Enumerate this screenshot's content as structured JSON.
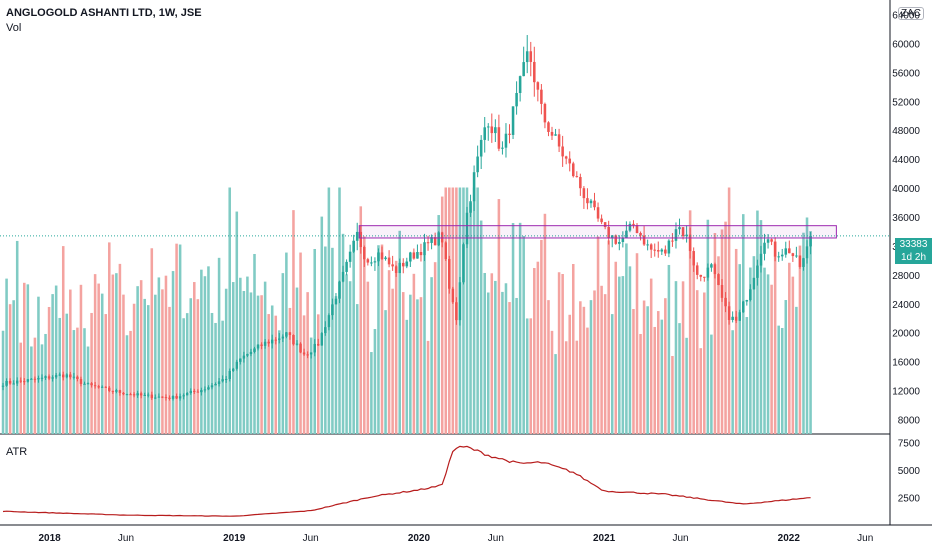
{
  "header": {
    "title": "ANGLOGOLD ASHANTI LTD, 1W, JSE",
    "volume_label": "Vol",
    "indicator_label": "ATR"
  },
  "currency": "ZAC",
  "current": {
    "price_label": "33383",
    "countdown": "1d 2h",
    "price": 33383
  },
  "colors": {
    "up": "#26a69a",
    "down": "#ef5350",
    "vol_up": "#80cbc4",
    "vol_down": "#f4a3a0",
    "atr": "#b71c1c",
    "box": "#9c27b0",
    "grid": "#131722"
  },
  "chart_data": [
    {
      "type": "candlestick",
      "title": "ANGLOGOLD ASHANTI LTD, 1W, JSE",
      "ylim": [
        6000,
        66000
      ],
      "y_ticks": [
        8000,
        12000,
        16000,
        20000,
        24000,
        28000,
        32000,
        36000,
        40000,
        44000,
        48000,
        52000,
        56000,
        60000,
        64000
      ],
      "x_ticks": [
        "2018",
        "Jun",
        "2019",
        "Jun",
        "2020",
        "Jun",
        "2021",
        "Jun",
        "2022",
        "Jun"
      ],
      "x_tick_dates": [
        "2018-01-01",
        "2018-06-01",
        "2019-01-01",
        "2019-06-01",
        "2020-01-01",
        "2020-06-01",
        "2021-01-01",
        "2021-06-01",
        "2022-01-01",
        "2022-06-01"
      ],
      "x_range": [
        "2017-09-25",
        "2022-07-20"
      ],
      "close_path": [
        [
          "2017-10-01",
          13000
        ],
        [
          "2017-12-01",
          13500
        ],
        [
          "2018-02-01",
          14200
        ],
        [
          "2018-03-15",
          12800
        ],
        [
          "2018-05-01",
          12000
        ],
        [
          "2018-07-01",
          11300
        ],
        [
          "2018-09-01",
          11000
        ],
        [
          "2018-11-01",
          12200
        ],
        [
          "2018-12-15",
          13700
        ],
        [
          "2019-01-15",
          16500
        ],
        [
          "2019-03-01",
          18500
        ],
        [
          "2019-04-15",
          19800
        ],
        [
          "2019-05-20",
          17000
        ],
        [
          "2019-06-15",
          18300
        ],
        [
          "2019-07-15",
          24000
        ],
        [
          "2019-08-15",
          30000
        ],
        [
          "2019-09-01",
          33500
        ],
        [
          "2019-09-20",
          30000
        ],
        [
          "2019-10-15",
          31000
        ],
        [
          "2019-11-15",
          28500
        ],
        [
          "2019-12-15",
          30500
        ],
        [
          "2020-01-15",
          32000
        ],
        [
          "2020-02-15",
          33500
        ],
        [
          "2020-03-01",
          26000
        ],
        [
          "2020-03-15",
          22000
        ],
        [
          "2020-04-01",
          35000
        ],
        [
          "2020-04-20",
          42000
        ],
        [
          "2020-05-15",
          50000
        ],
        [
          "2020-06-15",
          45000
        ],
        [
          "2020-07-15",
          53000
        ],
        [
          "2020-08-05",
          59000
        ],
        [
          "2020-09-01",
          50000
        ],
        [
          "2020-10-01",
          46000
        ],
        [
          "2020-11-01",
          42000
        ],
        [
          "2020-12-01",
          38000
        ],
        [
          "2021-01-01",
          34000
        ],
        [
          "2021-02-01",
          32500
        ],
        [
          "2021-03-01",
          35000
        ],
        [
          "2021-04-01",
          31500
        ],
        [
          "2021-05-01",
          31000
        ],
        [
          "2021-05-25",
          35000
        ],
        [
          "2021-06-15",
          33000
        ],
        [
          "2021-07-05",
          27500
        ],
        [
          "2021-08-01",
          29000
        ],
        [
          "2021-09-01",
          22500
        ],
        [
          "2021-09-20",
          21500
        ],
        [
          "2021-10-15",
          26000
        ],
        [
          "2021-11-15",
          33500
        ],
        [
          "2021-12-05",
          31000
        ],
        [
          "2022-01-01",
          31500
        ],
        [
          "2022-01-25",
          29000
        ],
        [
          "2022-02-15",
          33383
        ]
      ],
      "resistance_zone": {
        "x_start": "2019-09-05",
        "x_end": "2022-04-05",
        "y_low": 33100,
        "y_high": 34800
      }
    },
    {
      "type": "bar",
      "name": "Vol",
      "note_scale": "volume bars overlaid on the price pane"
    },
    {
      "type": "line",
      "name": "ATR",
      "ylim": [
        0,
        8200
      ],
      "y_ticks": [
        2500,
        5000,
        7500
      ],
      "path": [
        [
          "2017-10-01",
          1250
        ],
        [
          "2018-06-01",
          900
        ],
        [
          "2019-01-01",
          800
        ],
        [
          "2019-06-01",
          1300
        ],
        [
          "2019-10-01",
          2600
        ],
        [
          "2020-01-01",
          3200
        ],
        [
          "2020-02-15",
          3600
        ],
        [
          "2020-03-10",
          7000
        ],
        [
          "2020-04-05",
          7100
        ],
        [
          "2020-05-20",
          6300
        ],
        [
          "2020-07-15",
          5600
        ],
        [
          "2020-09-01",
          5700
        ],
        [
          "2020-11-01",
          4800
        ],
        [
          "2021-01-01",
          3100
        ],
        [
          "2021-05-01",
          2800
        ],
        [
          "2021-10-01",
          1900
        ],
        [
          "2022-02-15",
          2500
        ]
      ]
    }
  ]
}
